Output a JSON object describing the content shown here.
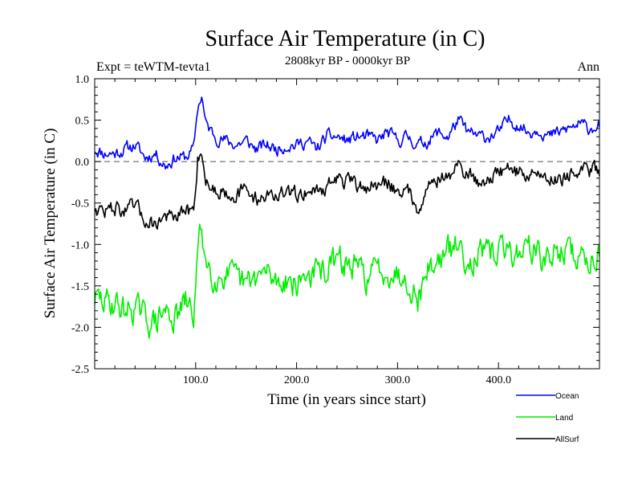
{
  "chart_data": {
    "type": "line",
    "title": "Surface Air Temperature (in C)",
    "subtitle": "2808kyr BP - 0000kyr BP",
    "left_annotation": "Expt = teWTM-tevta1",
    "right_annotation": "Ann",
    "xlabel": "Time (in years since start)",
    "ylabel": "Surface Air Temperature (in C)",
    "xlim": [
      0,
      500
    ],
    "ylim": [
      -2.5,
      1.0
    ],
    "x_ticks": [
      100,
      200,
      300,
      400
    ],
    "x_tick_labels": [
      "100.0",
      "200.0",
      "300.0",
      "400.0"
    ],
    "y_ticks": [
      1.0,
      0.5,
      0.0,
      -0.5,
      -1.0,
      -1.5,
      -2.0,
      -2.5
    ],
    "y_tick_labels": [
      "1.0",
      "0.5",
      "0.0",
      "-0.5",
      "-1.0",
      "-1.5",
      "-2.0",
      "-2.5"
    ],
    "reference_line": 0.0,
    "legend_position": "bottom-right",
    "series": [
      {
        "name": "Ocean",
        "color": "#0000ff",
        "x": [
          0,
          10,
          20,
          30,
          40,
          50,
          60,
          70,
          80,
          90,
          98,
          102,
          106,
          110,
          120,
          130,
          140,
          150,
          160,
          170,
          180,
          190,
          200,
          210,
          220,
          230,
          240,
          250,
          260,
          270,
          280,
          290,
          300,
          310,
          320,
          330,
          340,
          350,
          360,
          370,
          380,
          390,
          400,
          410,
          420,
          430,
          440,
          450,
          460,
          470,
          480,
          490,
          500
        ],
        "values": [
          0.15,
          0.1,
          0.1,
          0.15,
          0.2,
          0.05,
          0.1,
          -0.05,
          0.05,
          0.05,
          0.15,
          0.65,
          0.8,
          0.45,
          0.3,
          0.25,
          0.2,
          0.25,
          0.15,
          0.2,
          0.15,
          0.2,
          0.2,
          0.25,
          0.15,
          0.3,
          0.3,
          0.25,
          0.3,
          0.3,
          0.25,
          0.35,
          0.25,
          0.3,
          0.2,
          0.25,
          0.35,
          0.3,
          0.5,
          0.35,
          0.3,
          0.3,
          0.35,
          0.5,
          0.45,
          0.35,
          0.4,
          0.3,
          0.35,
          0.4,
          0.45,
          0.4,
          0.45
        ]
      },
      {
        "name": "Land",
        "color": "#00ee00",
        "x": [
          0,
          10,
          20,
          30,
          40,
          50,
          60,
          70,
          80,
          90,
          98,
          102,
          106,
          110,
          120,
          130,
          140,
          150,
          160,
          170,
          180,
          190,
          200,
          210,
          220,
          230,
          240,
          250,
          260,
          270,
          280,
          290,
          300,
          310,
          320,
          330,
          340,
          350,
          360,
          370,
          380,
          390,
          400,
          410,
          420,
          430,
          440,
          450,
          460,
          470,
          480,
          490,
          500
        ],
        "values": [
          -1.65,
          -1.7,
          -1.7,
          -1.8,
          -1.75,
          -1.9,
          -1.95,
          -1.8,
          -1.9,
          -1.7,
          -1.85,
          -1.1,
          -0.8,
          -1.2,
          -1.4,
          -1.35,
          -1.45,
          -1.5,
          -1.4,
          -1.35,
          -1.45,
          -1.4,
          -1.5,
          -1.35,
          -1.35,
          -1.3,
          -1.2,
          -1.25,
          -1.3,
          -1.4,
          -1.3,
          -1.3,
          -1.35,
          -1.4,
          -1.65,
          -1.3,
          -1.2,
          -1.1,
          -1.0,
          -1.2,
          -1.1,
          -1.15,
          -1.05,
          -1.1,
          -1.1,
          -1.0,
          -1.15,
          -1.2,
          -1.05,
          -1.1,
          -1.15,
          -1.2,
          -1.05
        ]
      },
      {
        "name": "AllSurf",
        "color": "#000000",
        "x": [
          0,
          10,
          20,
          30,
          40,
          50,
          60,
          70,
          80,
          90,
          98,
          102,
          106,
          110,
          120,
          130,
          140,
          150,
          160,
          170,
          180,
          190,
          200,
          210,
          220,
          230,
          240,
          250,
          260,
          270,
          280,
          290,
          300,
          310,
          320,
          330,
          340,
          350,
          360,
          370,
          380,
          390,
          400,
          410,
          420,
          430,
          440,
          450,
          460,
          470,
          480,
          490,
          500
        ],
        "values": [
          -0.55,
          -0.6,
          -0.55,
          -0.6,
          -0.55,
          -0.7,
          -0.75,
          -0.65,
          -0.7,
          -0.6,
          -0.6,
          0.05,
          0.15,
          -0.25,
          -0.35,
          -0.35,
          -0.4,
          -0.35,
          -0.45,
          -0.4,
          -0.4,
          -0.4,
          -0.4,
          -0.35,
          -0.35,
          -0.3,
          -0.2,
          -0.25,
          -0.3,
          -0.3,
          -0.3,
          -0.25,
          -0.35,
          -0.35,
          -0.55,
          -0.3,
          -0.2,
          -0.2,
          -0.05,
          -0.15,
          -0.25,
          -0.2,
          -0.15,
          -0.05,
          -0.15,
          -0.15,
          -0.15,
          -0.2,
          -0.2,
          -0.15,
          -0.15,
          -0.1,
          -0.1
        ]
      }
    ]
  }
}
